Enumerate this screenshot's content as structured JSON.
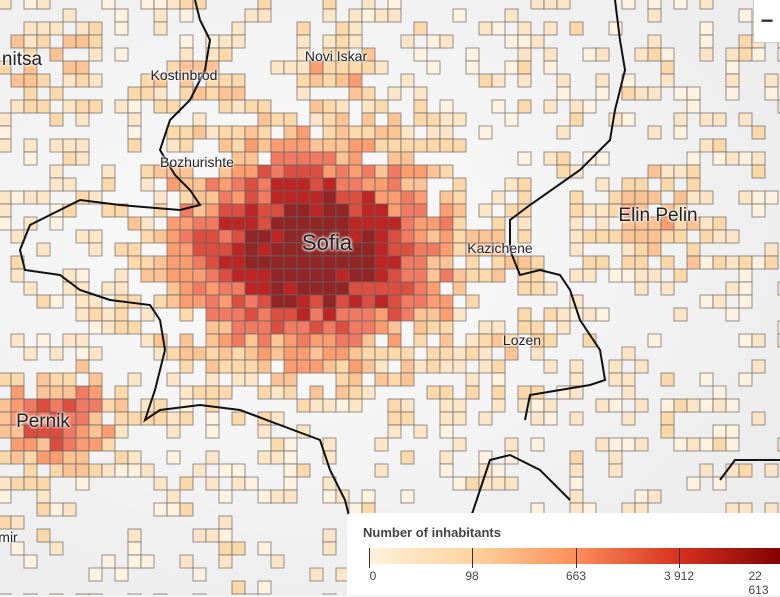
{
  "map": {
    "towns": [
      {
        "name": "Sofia",
        "size": "large"
      },
      {
        "name": "Elin Pelin",
        "size": "medium"
      },
      {
        "name": "Pernik",
        "size": "medium"
      },
      {
        "name": "nitsa",
        "size": "medium"
      },
      {
        "name": "Kostinbrod",
        "size": "small"
      },
      {
        "name": "Novi Iskar",
        "size": "small"
      },
      {
        "name": "Bozhurishte",
        "size": "small"
      },
      {
        "name": "Kazichene",
        "size": "small"
      },
      {
        "name": "Lozen",
        "size": "small"
      },
      {
        "name": "mir",
        "size": "small"
      }
    ],
    "zoom_out_label": "−"
  },
  "legend": {
    "title": "Number of inhabitants",
    "ticks": [
      "0",
      "98",
      "663",
      "3 912",
      "22 613"
    ],
    "colors": [
      "#fff1dc",
      "#fdd49e",
      "#fc8d59",
      "#d7301f",
      "#7f0000"
    ]
  }
}
